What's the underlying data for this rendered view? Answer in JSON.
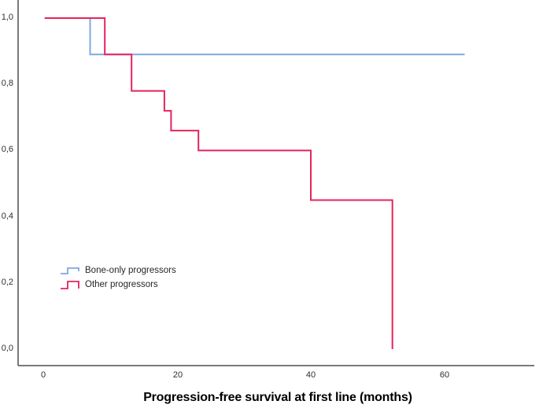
{
  "figure": {
    "background_color": "#ffffff",
    "axis_line_color": "#4e4e4e",
    "tick_label_color": "#2e2e2e"
  },
  "chart_data": {
    "type": "line",
    "subtype": "kaplan-meier-step",
    "title": "",
    "xlabel": "Progression-free survival at first line (months)",
    "ylabel": "",
    "xlim": [
      -3.8,
      73.3
    ],
    "ylim": [
      -0.05,
      1.05
    ],
    "grid": false,
    "legend_position": "inside-lower-left",
    "xticks": {
      "values": [
        0,
        20,
        40,
        60
      ],
      "labels": [
        "0",
        "20",
        "40",
        "60"
      ]
    },
    "yticks": {
      "values": [
        1.0,
        0.8,
        0.6,
        0.4,
        0.2,
        0.0
      ],
      "labels": [
        "1,0",
        "0,8",
        "0,6",
        "0,4",
        "0,2",
        "0,0"
      ]
    },
    "series": [
      {
        "name": "Bone-only progressors",
        "color": "#7fa8e2",
        "points": [
          [
            0.2,
            1.0
          ],
          [
            7,
            1.0
          ],
          [
            7,
            0.89
          ],
          [
            63,
            0.89
          ]
        ]
      },
      {
        "name": "Other progressors",
        "color": "#e4245c",
        "points": [
          [
            0.2,
            1.0
          ],
          [
            9.2,
            1.0
          ],
          [
            9.2,
            0.89
          ],
          [
            13.2,
            0.89
          ],
          [
            13.2,
            0.78
          ],
          [
            18.1,
            0.78
          ],
          [
            18.1,
            0.72
          ],
          [
            19.1,
            0.72
          ],
          [
            19.1,
            0.66
          ],
          [
            23.2,
            0.66
          ],
          [
            23.2,
            0.6
          ],
          [
            40,
            0.6
          ],
          [
            40,
            0.45
          ],
          [
            52.2,
            0.45
          ],
          [
            52.2,
            0.0
          ]
        ]
      }
    ]
  }
}
